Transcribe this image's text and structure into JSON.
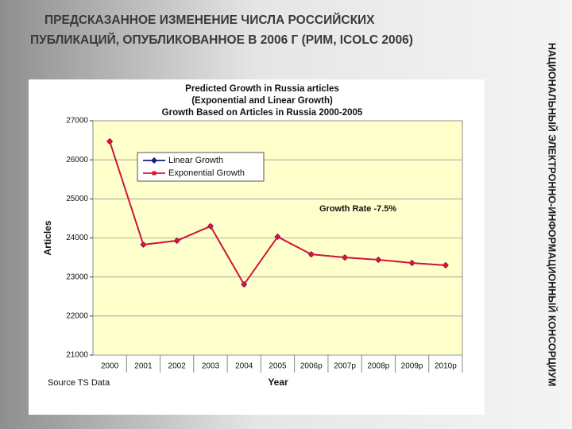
{
  "slide": {
    "title": [
      "ПРЕДСКАЗАННОЕ ИЗМЕНЕНИЕ ЧИСЛА РОССИЙСКИХ",
      "ПУБЛИКАЦИЙ, ОПУБЛИКОВАННОЕ В 2006 Г (РИМ, ICOLC 2006)"
    ],
    "side_text": "НАЦИОНАЛЬНЫЙ ЭЛЕКТРОННО-ИНФОРМАЦИОННЫЙ КОНСОРЦИУМ"
  },
  "chart_data": {
    "type": "line",
    "title": [
      "Predicted Growth in Russia articles",
      "(Exponential and Linear Growth)",
      "Growth Based on Articles in Russia 2000-2005"
    ],
    "y_label": "Articles",
    "x_label": "Year",
    "annotation": "Growth Rate -7.5%",
    "source": "Source TS Data",
    "categories": [
      "2000",
      "2001",
      "2002",
      "2003",
      "2004",
      "2005",
      "2006p",
      "2007p",
      "2008p",
      "2009p",
      "2010p"
    ],
    "series": [
      {
        "name": "Linear Growth",
        "color": "#1a1a7a",
        "values": [
          26470,
          23830,
          23930,
          24300,
          22810,
          24030,
          23580,
          23500,
          23440,
          23360,
          23300
        ]
      },
      {
        "name": "Exponential Growth",
        "color": "#dd1133",
        "values": [
          26470,
          23830,
          23930,
          24300,
          22810,
          24030,
          23580,
          23500,
          23440,
          23360,
          23300
        ]
      }
    ],
    "ylim": [
      21000,
      27000
    ],
    "yticks": [
      21000,
      22000,
      23000,
      24000,
      25000,
      26000,
      27000
    ],
    "grid": true,
    "plot_color": "#ffffcc"
  }
}
